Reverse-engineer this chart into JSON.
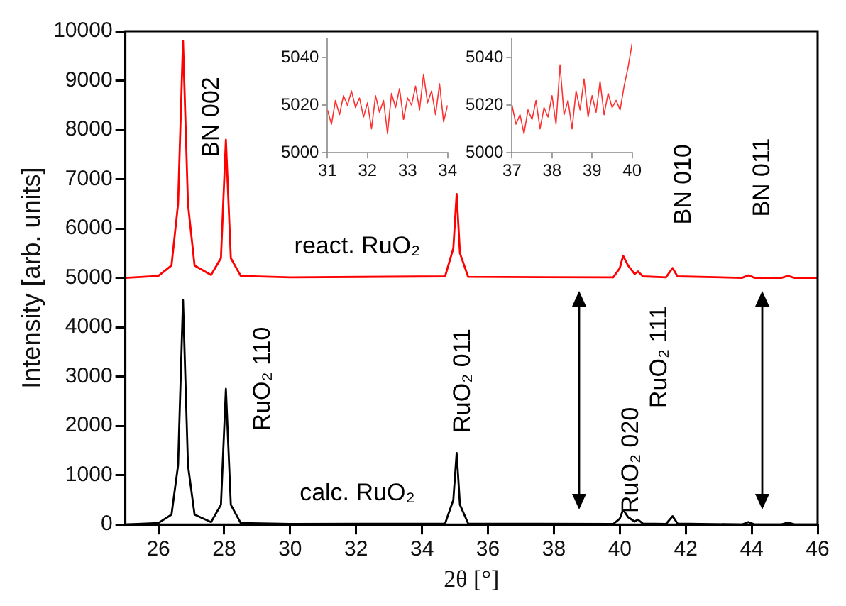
{
  "chart_data": [
    {
      "type": "line",
      "xlabel": "2θ [°]",
      "ylabel": "Intensity [arb. units]",
      "x": [
        25,
        26,
        26.4,
        26.6,
        26.75,
        26.9,
        27.1,
        27.6,
        27.9,
        28.05,
        28.2,
        28.5,
        30,
        34.7,
        34.95,
        35.05,
        35.15,
        35.4,
        39.8,
        40.0,
        40.1,
        40.25,
        40.45,
        40.55,
        40.7,
        41.4,
        41.6,
        41.75,
        43.7,
        43.9,
        44.1,
        44.9,
        45.1,
        45.3,
        46
      ],
      "series": [
        {
          "name": "react. RuO₂",
          "color": "#ff0000",
          "values": [
            5000,
            5040,
            5250,
            6500,
            9800,
            6500,
            5250,
            5060,
            5400,
            7800,
            5400,
            5040,
            5010,
            5030,
            5600,
            6700,
            5500,
            5020,
            5010,
            5200,
            5450,
            5250,
            5080,
            5130,
            5030,
            5010,
            5200,
            5030,
            5000,
            5050,
            5000,
            5000,
            5040,
            5000,
            5000
          ]
        },
        {
          "name": "calc. RuO₂",
          "color": "#000000",
          "values": [
            0,
            30,
            200,
            1200,
            4550,
            1200,
            200,
            50,
            400,
            2750,
            400,
            30,
            10,
            20,
            500,
            1450,
            400,
            20,
            10,
            120,
            300,
            150,
            60,
            100,
            20,
            10,
            170,
            20,
            0,
            50,
            0,
            0,
            40,
            0,
            0
          ]
        }
      ],
      "xlim": [
        25,
        46
      ],
      "ylim": [
        0,
        10000
      ],
      "xticks": [
        26,
        28,
        30,
        32,
        34,
        36,
        38,
        40,
        42,
        44,
        46
      ],
      "yticks": [
        0,
        1000,
        2000,
        3000,
        4000,
        5000,
        6000,
        7000,
        8000,
        9000,
        10000
      ],
      "annotations": [
        {
          "text": "BN 002",
          "x": 28.05,
          "y": 7800
        },
        {
          "text": "RuO₂ 110",
          "x": 28.05,
          "y": 2750
        },
        {
          "text": "RuO₂ 011",
          "x": 35.05,
          "y": 1450
        },
        {
          "text": "RuO₂ 020",
          "x": 40.1,
          "y": 300
        },
        "RuO₂ 111",
        {
          "text": "BN 010",
          "x": 41.6,
          "y": 5200
        },
        {
          "text": "BN 011",
          "x": 43.9,
          "y": 5050
        }
      ]
    },
    {
      "type": "line",
      "x": [
        31.0,
        31.1,
        31.2,
        31.3,
        31.4,
        31.5,
        31.6,
        31.7,
        31.8,
        31.9,
        32.0,
        32.1,
        32.2,
        32.3,
        32.4,
        32.5,
        32.6,
        32.7,
        32.8,
        32.9,
        33.0,
        33.1,
        33.2,
        33.3,
        33.4,
        33.5,
        33.6,
        33.7,
        33.8,
        33.9,
        34.0
      ],
      "series": [
        {
          "color": "#ff3030",
          "values": [
            5018,
            5012,
            5022,
            5016,
            5024,
            5020,
            5026,
            5019,
            5023,
            5015,
            5021,
            5010,
            5024,
            5017,
            5022,
            5008,
            5025,
            5019,
            5027,
            5014,
            5023,
            5020,
            5028,
            5018,
            5033,
            5021,
            5026,
            5016,
            5029,
            5013,
            5020
          ]
        }
      ],
      "xlim": [
        31,
        34
      ],
      "ylim": [
        5000,
        5048
      ],
      "xticks": [
        31,
        32,
        33,
        34
      ],
      "yticks": [
        5000,
        5020,
        5040
      ]
    },
    {
      "type": "line",
      "x": [
        37.0,
        37.1,
        37.2,
        37.3,
        37.4,
        37.5,
        37.6,
        37.7,
        37.8,
        37.9,
        38.0,
        38.1,
        38.2,
        38.3,
        38.4,
        38.5,
        38.6,
        38.7,
        38.8,
        38.9,
        39.0,
        39.1,
        39.2,
        39.3,
        39.4,
        39.5,
        39.6,
        39.7,
        39.8,
        39.9,
        40.0
      ],
      "series": [
        {
          "color": "#ff3030",
          "values": [
            5020,
            5012,
            5016,
            5008,
            5018,
            5014,
            5022,
            5010,
            5019,
            5015,
            5024,
            5012,
            5037,
            5016,
            5022,
            5010,
            5026,
            5018,
            5031,
            5015,
            5024,
            5017,
            5030,
            5016,
            5025,
            5019,
            5022,
            5018,
            5028,
            5036,
            5046
          ]
        }
      ],
      "xlim": [
        37,
        40
      ],
      "ylim": [
        5000,
        5048
      ],
      "xticks": [
        37,
        38,
        39,
        40
      ],
      "yticks": [
        5000,
        5020,
        5040
      ]
    }
  ]
}
